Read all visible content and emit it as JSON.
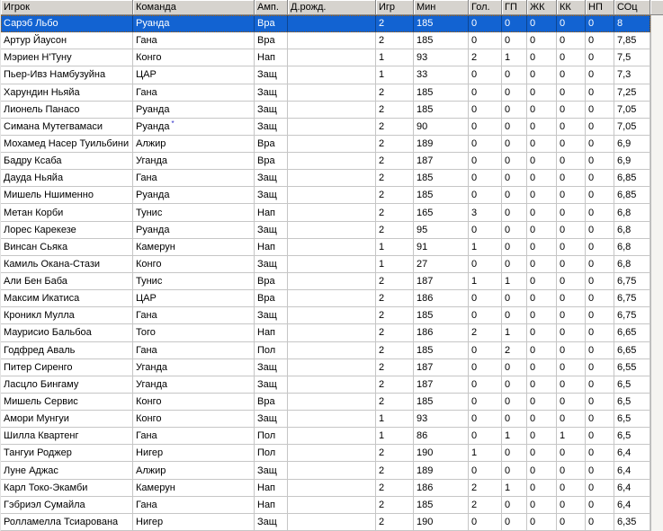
{
  "table": {
    "columns": [
      {
        "key": "player",
        "label": "Игрок"
      },
      {
        "key": "team",
        "label": "Команда"
      },
      {
        "key": "pos",
        "label": "Амп."
      },
      {
        "key": "dob",
        "label": "Д.рожд."
      },
      {
        "key": "games",
        "label": "Игр"
      },
      {
        "key": "min",
        "label": "Мин"
      },
      {
        "key": "goals",
        "label": "Гол."
      },
      {
        "key": "assists",
        "label": "ГП"
      },
      {
        "key": "yellow",
        "label": "ЖК"
      },
      {
        "key": "red",
        "label": "КК"
      },
      {
        "key": "missed_pen",
        "label": "НП"
      },
      {
        "key": "rating",
        "label": "СОц"
      }
    ],
    "selected_row_index": 0,
    "rows": [
      {
        "player": "Сарэб Льбо",
        "team": "Руанда",
        "pos": "Вра",
        "dob": "",
        "games": "2",
        "min": "185",
        "goals": "0",
        "assists": "0",
        "yellow": "0",
        "red": "0",
        "missed_pen": "0",
        "rating": "8"
      },
      {
        "player": "Артур Йаусон",
        "team": "Гана",
        "pos": "Вра",
        "dob": "",
        "games": "2",
        "min": "185",
        "goals": "0",
        "assists": "0",
        "yellow": "0",
        "red": "0",
        "missed_pen": "0",
        "rating": "7,85"
      },
      {
        "player": "Мэриен Н'Туну",
        "team": "Конго",
        "pos": "Нап",
        "dob": "",
        "games": "1",
        "min": "93",
        "goals": "2",
        "assists": "1",
        "yellow": "0",
        "red": "0",
        "missed_pen": "0",
        "rating": "7,5"
      },
      {
        "player": "Пьер-Ивз Намбузуйна",
        "team": "ЦАР",
        "pos": "Защ",
        "dob": "",
        "games": "1",
        "min": "33",
        "goals": "0",
        "assists": "0",
        "yellow": "0",
        "red": "0",
        "missed_pen": "0",
        "rating": "7,3"
      },
      {
        "player": "Харундин Ньяйа",
        "team": "Гана",
        "pos": "Защ",
        "dob": "",
        "games": "2",
        "min": "185",
        "goals": "0",
        "assists": "0",
        "yellow": "0",
        "red": "0",
        "missed_pen": "0",
        "rating": "7,25"
      },
      {
        "player": "Лионель Панасо",
        "team": "Руанда",
        "pos": "Защ",
        "dob": "",
        "games": "2",
        "min": "185",
        "goals": "0",
        "assists": "0",
        "yellow": "0",
        "red": "0",
        "missed_pen": "0",
        "rating": "7,05"
      },
      {
        "player": "Симана Мутегвамаси",
        "team": "Руанда",
        "team_note": "*",
        "pos": "Защ",
        "dob": "",
        "games": "2",
        "min": "90",
        "goals": "0",
        "assists": "0",
        "yellow": "0",
        "red": "0",
        "missed_pen": "0",
        "rating": "7,05"
      },
      {
        "player": "Мохамед Насер Туильбини",
        "team": "Алжир",
        "pos": "Вра",
        "dob": "",
        "games": "2",
        "min": "189",
        "goals": "0",
        "assists": "0",
        "yellow": "0",
        "red": "0",
        "missed_pen": "0",
        "rating": "6,9"
      },
      {
        "player": "Бадру Ксаба",
        "team": "Уганда",
        "pos": "Вра",
        "dob": "",
        "games": "2",
        "min": "187",
        "goals": "0",
        "assists": "0",
        "yellow": "0",
        "red": "0",
        "missed_pen": "0",
        "rating": "6,9"
      },
      {
        "player": "Дауда Ньяйа",
        "team": "Гана",
        "pos": "Защ",
        "dob": "",
        "games": "2",
        "min": "185",
        "goals": "0",
        "assists": "0",
        "yellow": "0",
        "red": "0",
        "missed_pen": "0",
        "rating": "6,85"
      },
      {
        "player": "Мишель Ншименно",
        "team": "Руанда",
        "pos": "Защ",
        "dob": "",
        "games": "2",
        "min": "185",
        "goals": "0",
        "assists": "0",
        "yellow": "0",
        "red": "0",
        "missed_pen": "0",
        "rating": "6,85"
      },
      {
        "player": "Метан Корби",
        "team": "Тунис",
        "pos": "Нап",
        "dob": "",
        "games": "2",
        "min": "165",
        "goals": "3",
        "assists": "0",
        "yellow": "0",
        "red": "0",
        "missed_pen": "0",
        "rating": "6,8"
      },
      {
        "player": "Лорес Карекезе",
        "team": "Руанда",
        "pos": "Защ",
        "dob": "",
        "games": "2",
        "min": "95",
        "goals": "0",
        "assists": "0",
        "yellow": "0",
        "red": "0",
        "missed_pen": "0",
        "rating": "6,8"
      },
      {
        "player": "Винсан Сьяка",
        "team": "Камерун",
        "pos": "Нап",
        "dob": "",
        "games": "1",
        "min": "91",
        "goals": "1",
        "assists": "0",
        "yellow": "0",
        "red": "0",
        "missed_pen": "0",
        "rating": "6,8"
      },
      {
        "player": "Камиль Окана-Стази",
        "team": "Конго",
        "pos": "Защ",
        "dob": "",
        "games": "1",
        "min": "27",
        "goals": "0",
        "assists": "0",
        "yellow": "0",
        "red": "0",
        "missed_pen": "0",
        "rating": "6,8"
      },
      {
        "player": "Али Бен Баба",
        "team": "Тунис",
        "pos": "Вра",
        "dob": "",
        "games": "2",
        "min": "187",
        "goals": "1",
        "assists": "1",
        "yellow": "0",
        "red": "0",
        "missed_pen": "0",
        "rating": "6,75"
      },
      {
        "player": "Максим Икатиса",
        "team": "ЦАР",
        "pos": "Вра",
        "dob": "",
        "games": "2",
        "min": "186",
        "goals": "0",
        "assists": "0",
        "yellow": "0",
        "red": "0",
        "missed_pen": "0",
        "rating": "6,75"
      },
      {
        "player": "Кроникл Мулла",
        "team": "Гана",
        "pos": "Защ",
        "dob": "",
        "games": "2",
        "min": "185",
        "goals": "0",
        "assists": "0",
        "yellow": "0",
        "red": "0",
        "missed_pen": "0",
        "rating": "6,75"
      },
      {
        "player": "Маурисио Бальбоа",
        "team": "Того",
        "pos": "Нап",
        "dob": "",
        "games": "2",
        "min": "186",
        "goals": "2",
        "assists": "1",
        "yellow": "0",
        "red": "0",
        "missed_pen": "0",
        "rating": "6,65"
      },
      {
        "player": "Годфред Аваль",
        "team": "Гана",
        "pos": "Пол",
        "dob": "",
        "games": "2",
        "min": "185",
        "goals": "0",
        "assists": "2",
        "yellow": "0",
        "red": "0",
        "missed_pen": "0",
        "rating": "6,65"
      },
      {
        "player": "Питер Сиренго",
        "team": "Уганда",
        "pos": "Защ",
        "dob": "",
        "games": "2",
        "min": "187",
        "goals": "0",
        "assists": "0",
        "yellow": "0",
        "red": "0",
        "missed_pen": "0",
        "rating": "6,55"
      },
      {
        "player": "Ласцло Бингаму",
        "team": "Уганда",
        "pos": "Защ",
        "dob": "",
        "games": "2",
        "min": "187",
        "goals": "0",
        "assists": "0",
        "yellow": "0",
        "red": "0",
        "missed_pen": "0",
        "rating": "6,5"
      },
      {
        "player": "Мишель Сервис",
        "team": "Конго",
        "pos": "Вра",
        "dob": "",
        "games": "2",
        "min": "185",
        "goals": "0",
        "assists": "0",
        "yellow": "0",
        "red": "0",
        "missed_pen": "0",
        "rating": "6,5"
      },
      {
        "player": "Амори Мунгуи",
        "team": "Конго",
        "pos": "Защ",
        "dob": "",
        "games": "1",
        "min": "93",
        "goals": "0",
        "assists": "0",
        "yellow": "0",
        "red": "0",
        "missed_pen": "0",
        "rating": "6,5"
      },
      {
        "player": "Шилла Квартенг",
        "team": "Гана",
        "pos": "Пол",
        "dob": "",
        "games": "1",
        "min": "86",
        "goals": "0",
        "assists": "1",
        "yellow": "0",
        "red": "1",
        "missed_pen": "0",
        "rating": "6,5"
      },
      {
        "player": "Тангуи Роджер",
        "team": "Нигер",
        "pos": "Пол",
        "dob": "",
        "games": "2",
        "min": "190",
        "goals": "1",
        "assists": "0",
        "yellow": "0",
        "red": "0",
        "missed_pen": "0",
        "rating": "6,4"
      },
      {
        "player": "Луне Аджас",
        "team": "Алжир",
        "pos": "Защ",
        "dob": "",
        "games": "2",
        "min": "189",
        "goals": "0",
        "assists": "0",
        "yellow": "0",
        "red": "0",
        "missed_pen": "0",
        "rating": "6,4"
      },
      {
        "player": "Карл Токо-Экамби",
        "team": "Камерун",
        "pos": "Нап",
        "dob": "",
        "games": "2",
        "min": "186",
        "goals": "2",
        "assists": "1",
        "yellow": "0",
        "red": "0",
        "missed_pen": "0",
        "rating": "6,4"
      },
      {
        "player": "Гэбриэл Сумайла",
        "team": "Гана",
        "pos": "Нап",
        "dob": "",
        "games": "2",
        "min": "185",
        "goals": "2",
        "assists": "0",
        "yellow": "0",
        "red": "0",
        "missed_pen": "0",
        "rating": "6,4"
      },
      {
        "player": "Ролламелла Тсиарована",
        "team": "Нигер",
        "pos": "Защ",
        "dob": "",
        "games": "2",
        "min": "190",
        "goals": "0",
        "assists": "0",
        "yellow": "0",
        "red": "0",
        "missed_pen": "0",
        "rating": "6,35"
      }
    ]
  },
  "colors": {
    "selection_bg": "#1263d2",
    "selection_text": "#ffffff",
    "focus_rect": "#a65c00",
    "header_bg": "#d6d3ce",
    "grid_line": "#c6c6c6",
    "note_marker": "#2a2ac8"
  }
}
